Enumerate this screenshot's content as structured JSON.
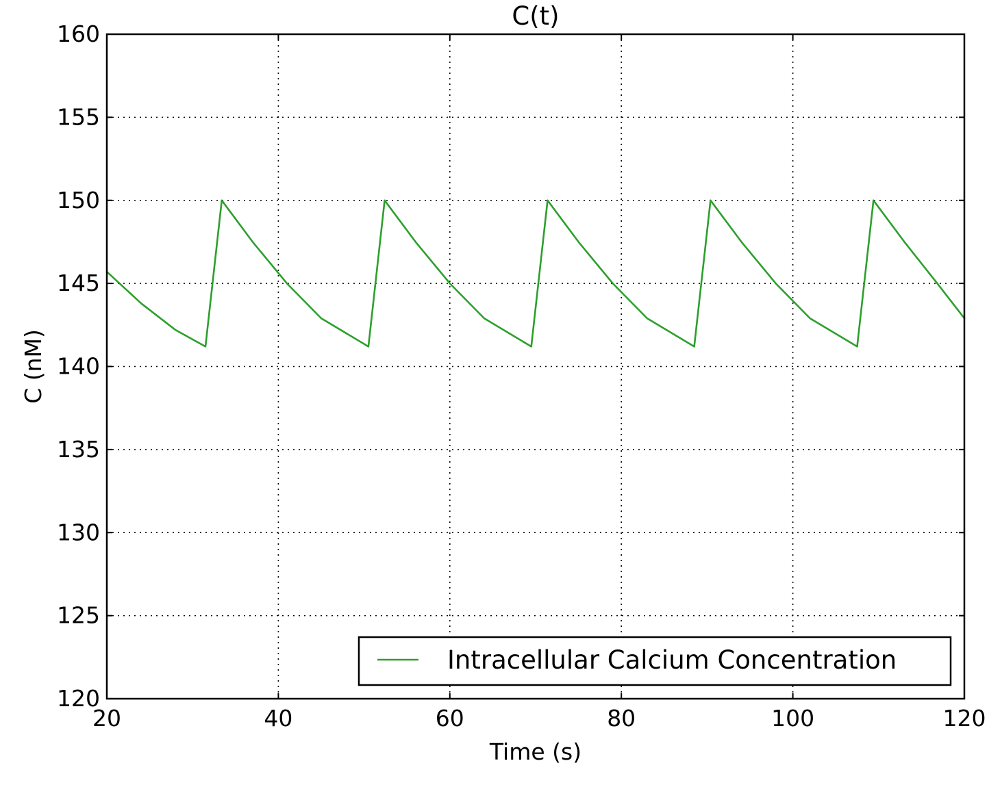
{
  "chart_data": {
    "type": "line",
    "title": "C(t)",
    "xlabel": "Time (s)",
    "ylabel": "C (nM)",
    "xlim": [
      20,
      120
    ],
    "ylim": [
      120,
      160
    ],
    "xticks": [
      20,
      40,
      60,
      80,
      100,
      120
    ],
    "yticks": [
      120,
      125,
      130,
      135,
      140,
      145,
      150,
      155,
      160
    ],
    "grid": true,
    "legend_position": "lower-right",
    "series": [
      {
        "name": "Intracellular Calcium Concentration",
        "color": "#2ca02c",
        "x": [
          20,
          24,
          28,
          31.5,
          33.4,
          37,
          41,
          45,
          50.5,
          52.4,
          56,
          60,
          64,
          69.5,
          71.4,
          75,
          79,
          83,
          88.5,
          90.4,
          94,
          98,
          102,
          107.5,
          109.4,
          113,
          117,
          120
        ],
        "y": [
          145.7,
          143.8,
          142.2,
          141.2,
          150.0,
          147.5,
          145.0,
          142.9,
          141.2,
          150.0,
          147.5,
          145.0,
          142.9,
          141.2,
          150.0,
          147.5,
          145.0,
          142.9,
          141.2,
          150.0,
          147.5,
          145.0,
          142.9,
          141.2,
          150.0,
          147.5,
          144.9,
          142.9
        ]
      }
    ]
  }
}
